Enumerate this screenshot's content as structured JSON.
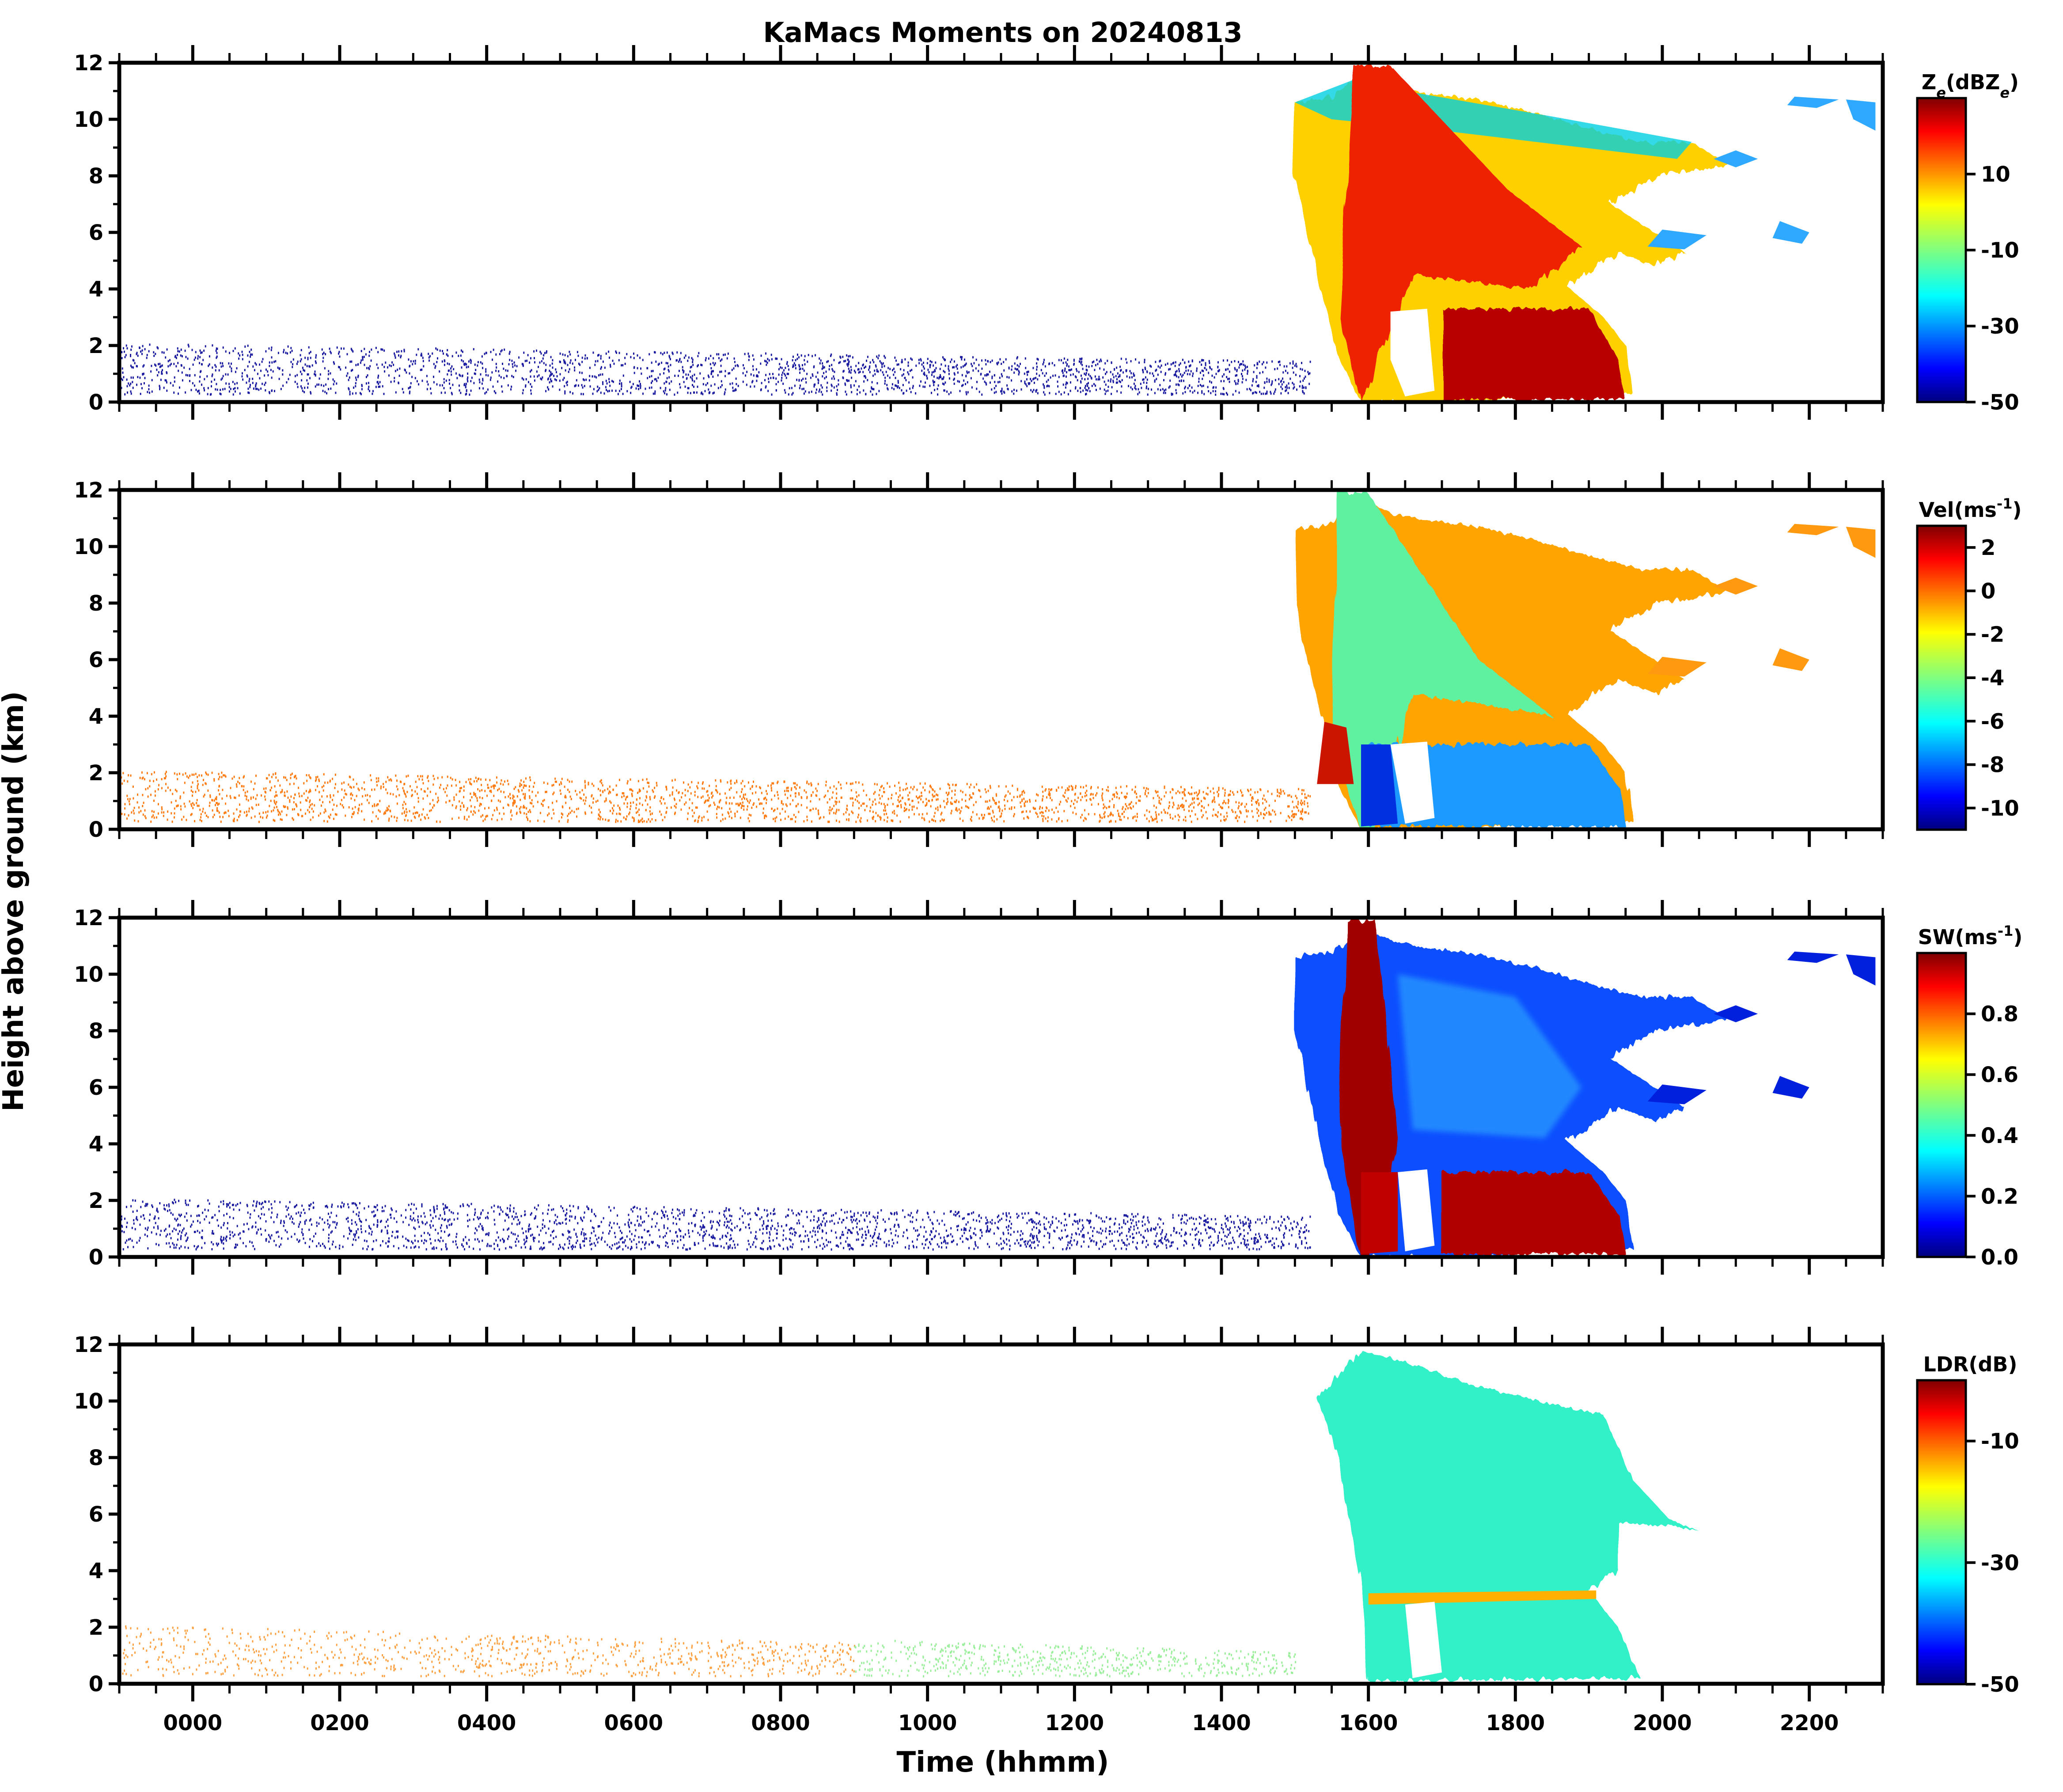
{
  "figure": {
    "title": "KaMacs Moments on 20240813",
    "xlabel": "Time (hhmm)",
    "ylabel": "Height above ground (km)"
  },
  "chart_data": [
    {
      "type": "heatmap",
      "panel": "reflectivity",
      "colorbar_label": "Z_e(dBZ_e)",
      "colorbar_ticks": [
        "10",
        "-10",
        "-30",
        "-50"
      ],
      "colorbar_range": [
        -50,
        30
      ],
      "y_ticks": [
        "0",
        "2",
        "4",
        "6",
        "8",
        "10",
        "12"
      ],
      "ylim": [
        0,
        12
      ],
      "x_ticks": [
        "0000",
        "0200",
        "0400",
        "0600",
        "0800",
        "1000",
        "1200",
        "1400",
        "1600",
        "1800",
        "2000",
        "2200"
      ],
      "colormap": "jet"
    },
    {
      "type": "heatmap",
      "panel": "velocity",
      "colorbar_label": "Vel(ms^-1)",
      "colorbar_ticks": [
        "2",
        "0",
        "-2",
        "-4",
        "-6",
        "-8",
        "-10"
      ],
      "colorbar_range": [
        -11,
        3
      ],
      "y_ticks": [
        "0",
        "2",
        "4",
        "6",
        "8",
        "10",
        "12"
      ],
      "ylim": [
        0,
        12
      ],
      "x_ticks": [
        "0000",
        "0200",
        "0400",
        "0600",
        "0800",
        "1000",
        "1200",
        "1400",
        "1600",
        "1800",
        "2000",
        "2200"
      ],
      "colormap": "jet"
    },
    {
      "type": "heatmap",
      "panel": "spectrum_width",
      "colorbar_label": "SW(ms^-1)",
      "colorbar_ticks": [
        "0.8",
        "0.6",
        "0.4",
        "0.2",
        "0.0"
      ],
      "colorbar_range": [
        0.0,
        1.0
      ],
      "y_ticks": [
        "0",
        "2",
        "4",
        "6",
        "8",
        "10",
        "12"
      ],
      "ylim": [
        0,
        12
      ],
      "x_ticks": [
        "0000",
        "0200",
        "0400",
        "0600",
        "0800",
        "1000",
        "1200",
        "1400",
        "1600",
        "1800",
        "2000",
        "2200"
      ],
      "colormap": "jet"
    },
    {
      "type": "heatmap",
      "panel": "ldr",
      "colorbar_label": "LDR(dB)",
      "colorbar_ticks": [
        "-10",
        "-30",
        "-50"
      ],
      "colorbar_range": [
        -50,
        0
      ],
      "y_ticks": [
        "0",
        "2",
        "4",
        "6",
        "8",
        "10",
        "12"
      ],
      "ylim": [
        0,
        12
      ],
      "x_ticks": [
        "0000",
        "0200",
        "0400",
        "0600",
        "0800",
        "1000",
        "1200",
        "1400",
        "1600",
        "1800",
        "2000",
        "2200"
      ],
      "colormap": "jet"
    }
  ],
  "colors": {
    "jet": [
      "#00007f",
      "#0000ff",
      "#007fff",
      "#00ffff",
      "#7fff7f",
      "#ffff00",
      "#ff7f00",
      "#ff0000",
      "#7f0000"
    ]
  }
}
